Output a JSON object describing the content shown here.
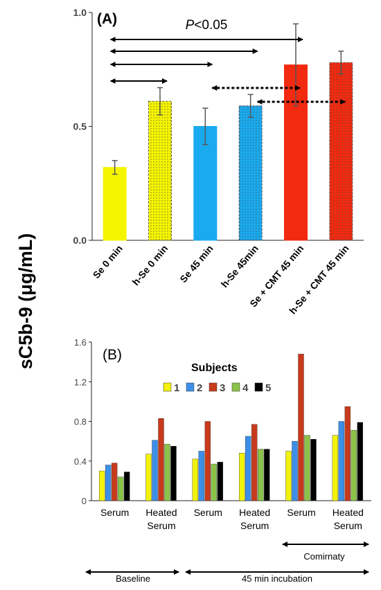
{
  "y_axis_label": "sC5b-9 (μg/mL)",
  "colors": {
    "yellow": "#F5F500",
    "blue": "#1AAAF0",
    "red": "#F22A10",
    "s1": "#F2F20A",
    "s2": "#3C8FE8",
    "s3": "#C83A1C",
    "s4": "#8BC34A",
    "s5": "#000000"
  },
  "chart_data": [
    {
      "type": "bar",
      "panel_label": "(A)",
      "categories": [
        "Se 0 min",
        "h-Se 0 min",
        "Se 45 min",
        "h-Se 45min",
        "Se + CMT 45 min",
        "h-Se + CMT 45 min"
      ],
      "values": [
        0.32,
        0.61,
        0.5,
        0.59,
        0.77,
        0.78
      ],
      "errors": [
        0.03,
        0.06,
        0.08,
        0.05,
        0.18,
        0.05
      ],
      "bar_colors": [
        "yellow",
        "yellow",
        "blue",
        "blue",
        "red",
        "red"
      ],
      "dotted": [
        false,
        true,
        false,
        true,
        false,
        true
      ],
      "ylim": [
        0,
        1.0
      ],
      "yticks": [
        "0.0",
        "0.5",
        "1.0"
      ],
      "annotation": "P<0.05",
      "solid_comparisons": [
        [
          0,
          4
        ],
        [
          0,
          3
        ],
        [
          0,
          2
        ],
        [
          0,
          1
        ]
      ],
      "dotted_comparisons": [
        [
          2,
          4
        ],
        [
          3,
          5
        ]
      ]
    },
    {
      "type": "bar",
      "panel_label": "(B)",
      "legend_title": "Subjects",
      "series": [
        {
          "name": "1",
          "values": [
            0.3,
            0.47,
            0.42,
            0.48,
            0.5,
            0.66
          ]
        },
        {
          "name": "2",
          "values": [
            0.36,
            0.61,
            0.5,
            0.65,
            0.6,
            0.8
          ]
        },
        {
          "name": "3",
          "values": [
            0.38,
            0.83,
            0.8,
            0.77,
            1.48,
            0.95
          ]
        },
        {
          "name": "4",
          "values": [
            0.24,
            0.57,
            0.37,
            0.52,
            0.66,
            0.71
          ]
        },
        {
          "name": "5",
          "values": [
            0.29,
            0.55,
            0.39,
            0.52,
            0.62,
            0.79
          ]
        }
      ],
      "categories": [
        "Serum",
        "Heated Serum",
        "Serum",
        "Heated Serum",
        "Serum",
        "Heated Serum"
      ],
      "ylim": [
        0,
        1.6
      ],
      "yticks": [
        "0",
        "0.4",
        "0.8",
        "1.2",
        "1.6"
      ],
      "group_labels": {
        "comirnaty": "Comirnaty",
        "baseline": "Baseline",
        "incubation": "45 min incubation"
      }
    }
  ]
}
